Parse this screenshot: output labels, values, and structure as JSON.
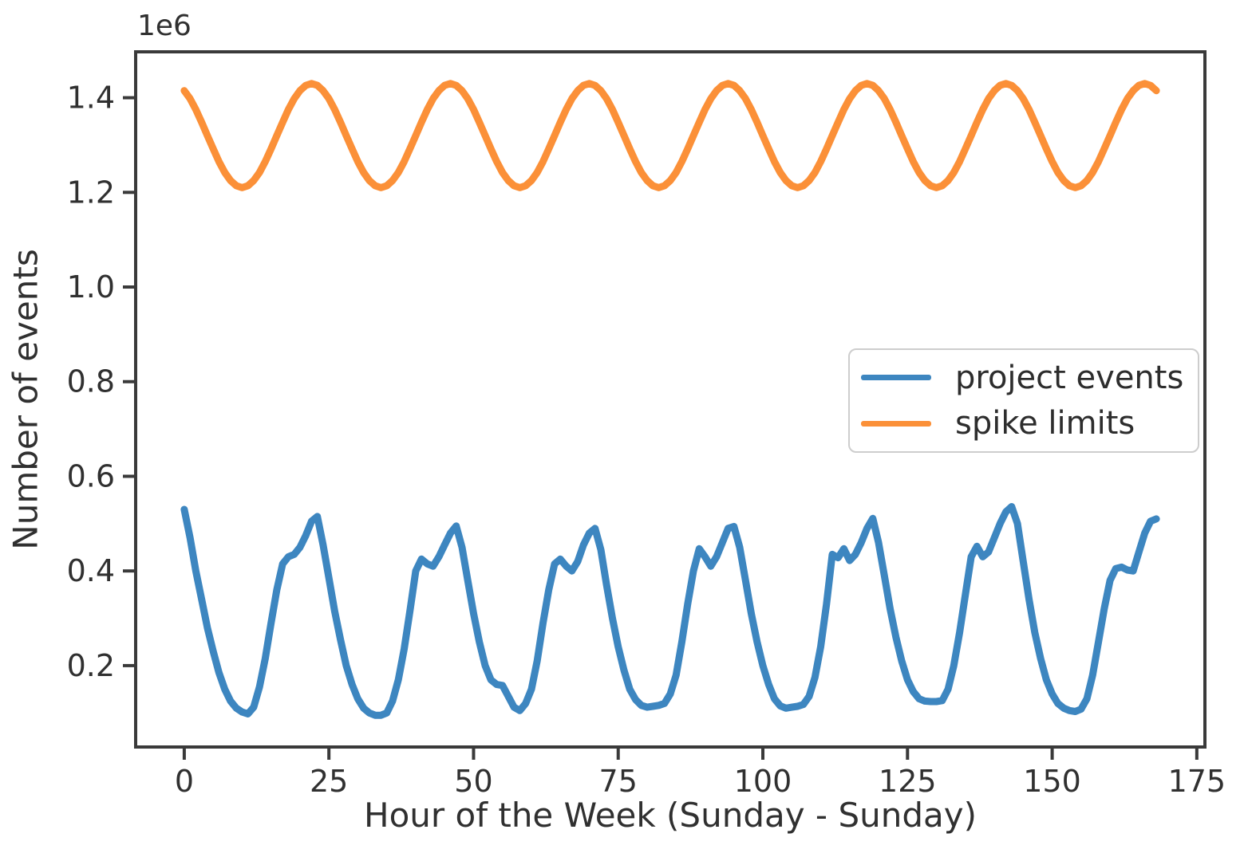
{
  "figure": {
    "background": "#ffffff",
    "text_color": "#303030",
    "spine_color": "#3a3a3a"
  },
  "chart_data": {
    "type": "line",
    "title": "",
    "xlabel": "Hour of the Week (Sunday - Sunday)",
    "ylabel": "Number of events",
    "y_offset_text": "1e6",
    "grid": false,
    "legend_position": "center right",
    "xlim": [
      -8.4,
      176.4
    ],
    "ylim": [
      28000,
      1497000
    ],
    "xticks": [
      0,
      25,
      50,
      75,
      100,
      125,
      150,
      175
    ],
    "xtick_labels": [
      "0",
      "25",
      "50",
      "75",
      "100",
      "125",
      "150",
      "175"
    ],
    "ytick_values": [
      200000,
      400000,
      600000,
      800000,
      1000000,
      1200000,
      1400000
    ],
    "ytick_labels": [
      "0.2",
      "0.4",
      "0.6",
      "0.8",
      "1.0",
      "1.2",
      "1.4"
    ],
    "x_hours": {
      "start": 0,
      "step": 1,
      "count": 169
    },
    "series": [
      {
        "name": "project events",
        "color": "#3d86c0",
        "values": [
          530000,
          470000,
          400000,
          340000,
          280000,
          230000,
          185000,
          150000,
          125000,
          110000,
          102000,
          98000,
          112000,
          155000,
          215000,
          290000,
          360000,
          415000,
          430000,
          435000,
          450000,
          475000,
          505000,
          515000,
          455000,
          385000,
          315000,
          255000,
          200000,
          160000,
          130000,
          110000,
          100000,
          95000,
          95000,
          100000,
          125000,
          170000,
          235000,
          315000,
          400000,
          425000,
          415000,
          410000,
          430000,
          455000,
          480000,
          495000,
          450000,
          380000,
          310000,
          250000,
          200000,
          170000,
          160000,
          158000,
          135000,
          112000,
          105000,
          120000,
          150000,
          210000,
          290000,
          360000,
          415000,
          425000,
          410000,
          400000,
          420000,
          455000,
          480000,
          490000,
          445000,
          370000,
          300000,
          240000,
          190000,
          150000,
          128000,
          116000,
          112000,
          114000,
          116000,
          120000,
          140000,
          180000,
          250000,
          330000,
          400000,
          447000,
          430000,
          410000,
          430000,
          460000,
          490000,
          494000,
          450000,
          380000,
          310000,
          250000,
          200000,
          160000,
          130000,
          115000,
          110000,
          112000,
          114000,
          118000,
          135000,
          175000,
          240000,
          330000,
          435000,
          428000,
          447000,
          422000,
          435000,
          460000,
          490000,
          511000,
          460000,
          390000,
          320000,
          260000,
          210000,
          170000,
          145000,
          130000,
          125000,
          124000,
          124000,
          126000,
          150000,
          200000,
          270000,
          350000,
          430000,
          452000,
          430000,
          440000,
          470000,
          500000,
          525000,
          536000,
          500000,
          420000,
          340000,
          270000,
          215000,
          170000,
          140000,
          120000,
          110000,
          105000,
          103000,
          108000,
          130000,
          180000,
          250000,
          320000,
          380000,
          405000,
          408000,
          402000,
          400000,
          440000,
          480000,
          505000,
          510000
        ]
      },
      {
        "name": "spike limits",
        "color": "#fb9038",
        "values": [
          1415000,
          1398000,
          1375000,
          1348000,
          1320000,
          1292000,
          1265000,
          1242000,
          1225000,
          1214000,
          1210000,
          1214000,
          1225000,
          1242000,
          1265000,
          1292000,
          1320000,
          1348000,
          1375000,
          1398000,
          1415000,
          1426000,
          1430000,
          1426000,
          1415000,
          1398000,
          1375000,
          1348000,
          1320000,
          1292000,
          1265000,
          1242000,
          1225000,
          1214000,
          1210000,
          1214000,
          1225000,
          1242000,
          1265000,
          1292000,
          1320000,
          1348000,
          1375000,
          1398000,
          1415000,
          1426000,
          1430000,
          1426000,
          1415000,
          1398000,
          1375000,
          1348000,
          1320000,
          1292000,
          1265000,
          1242000,
          1225000,
          1214000,
          1210000,
          1214000,
          1225000,
          1242000,
          1265000,
          1292000,
          1320000,
          1348000,
          1375000,
          1398000,
          1415000,
          1426000,
          1430000,
          1426000,
          1415000,
          1398000,
          1375000,
          1348000,
          1320000,
          1292000,
          1265000,
          1242000,
          1225000,
          1214000,
          1210000,
          1214000,
          1225000,
          1242000,
          1265000,
          1292000,
          1320000,
          1348000,
          1375000,
          1398000,
          1415000,
          1426000,
          1430000,
          1426000,
          1415000,
          1398000,
          1375000,
          1348000,
          1320000,
          1292000,
          1265000,
          1242000,
          1225000,
          1214000,
          1210000,
          1214000,
          1225000,
          1242000,
          1265000,
          1292000,
          1320000,
          1348000,
          1375000,
          1398000,
          1415000,
          1426000,
          1430000,
          1426000,
          1415000,
          1398000,
          1375000,
          1348000,
          1320000,
          1292000,
          1265000,
          1242000,
          1225000,
          1214000,
          1210000,
          1214000,
          1225000,
          1242000,
          1265000,
          1292000,
          1320000,
          1348000,
          1375000,
          1398000,
          1415000,
          1426000,
          1430000,
          1426000,
          1415000,
          1398000,
          1375000,
          1348000,
          1320000,
          1292000,
          1265000,
          1242000,
          1225000,
          1214000,
          1210000,
          1214000,
          1225000,
          1242000,
          1265000,
          1292000,
          1320000,
          1348000,
          1375000,
          1398000,
          1415000,
          1426000,
          1430000,
          1426000,
          1415000
        ]
      }
    ]
  }
}
